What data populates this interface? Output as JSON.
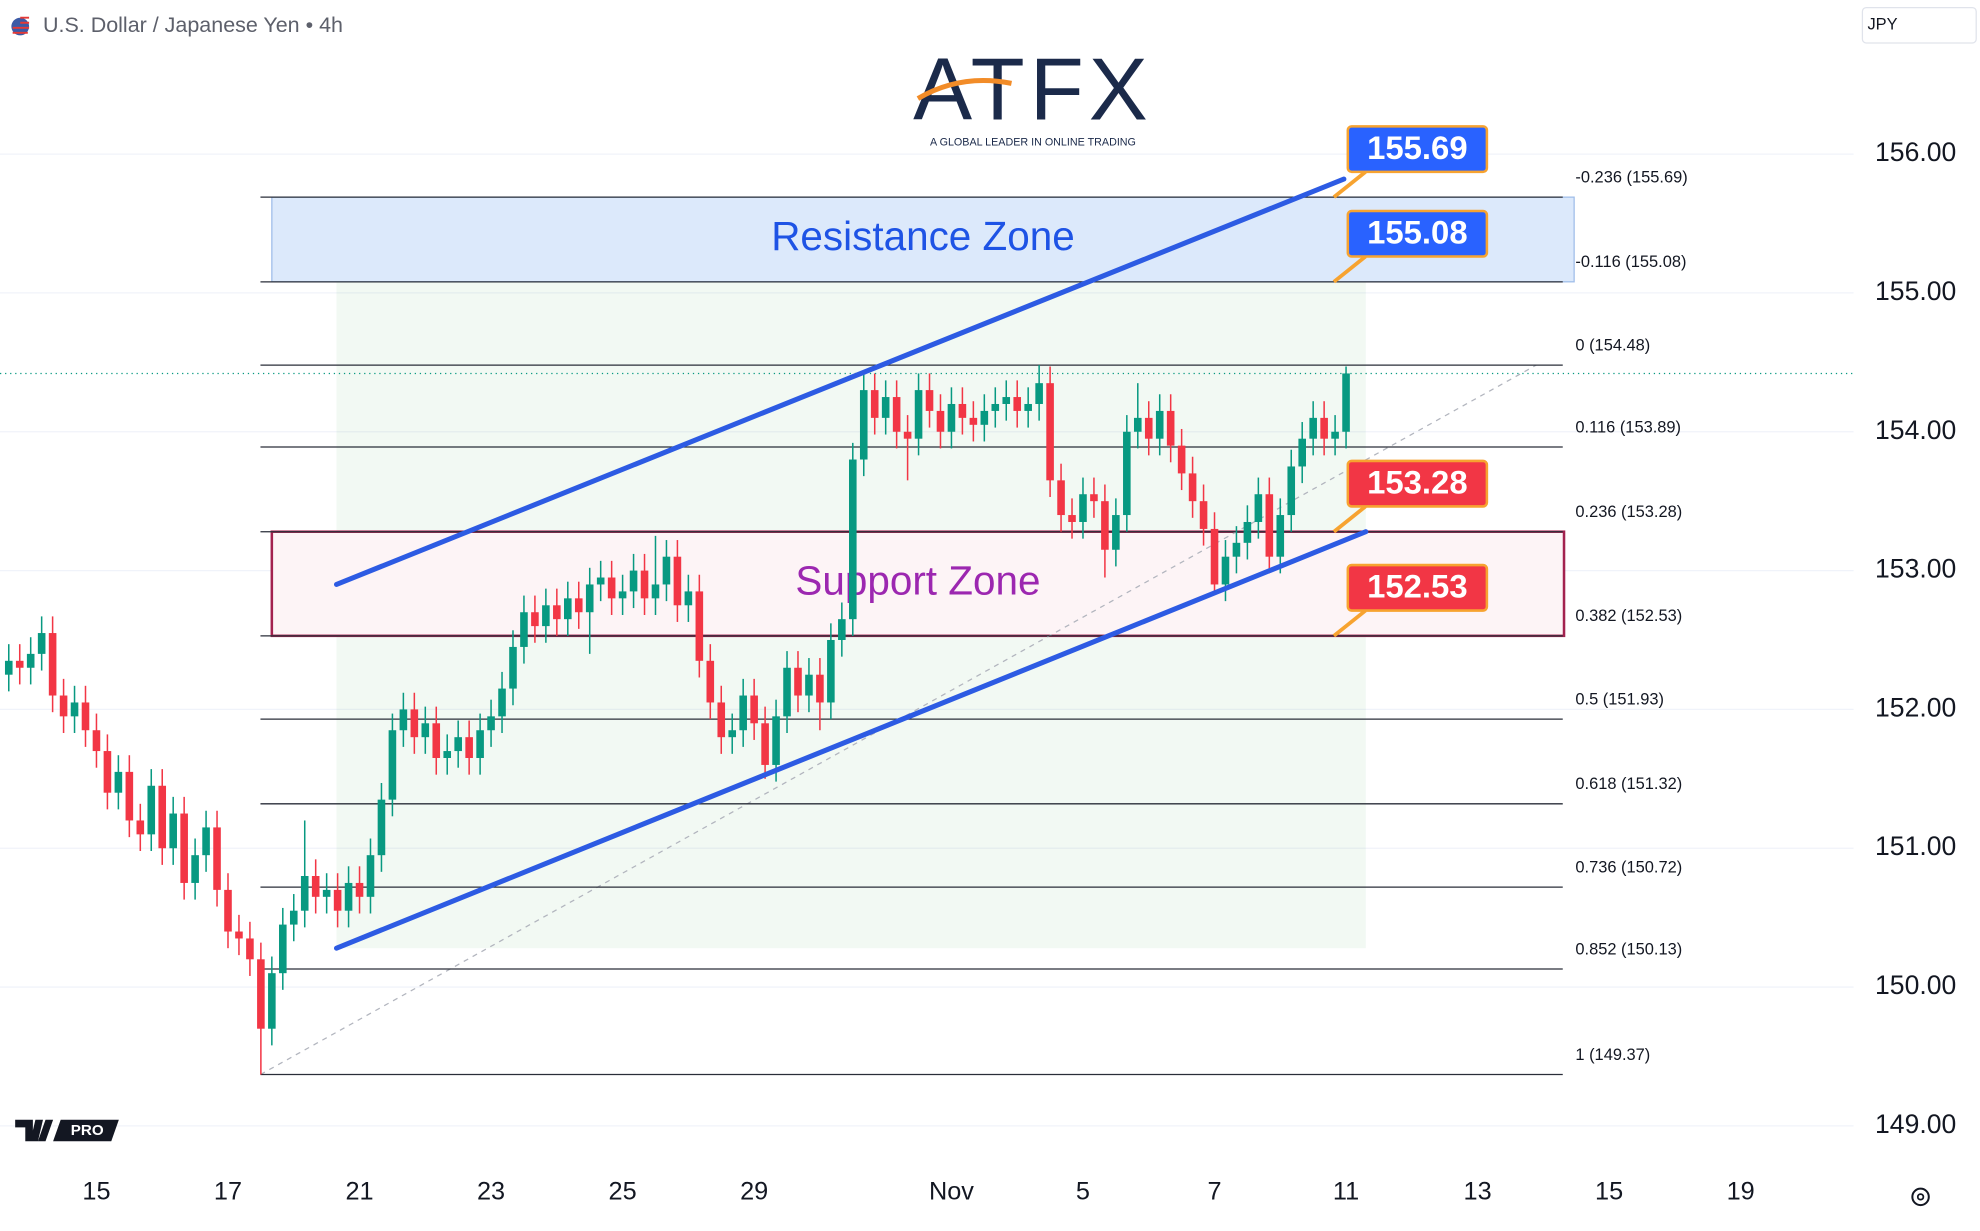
{
  "header": {
    "symbol": "U.S. Dollar / Japanese Yen • 4h",
    "currency": "JPY"
  },
  "logo": {
    "brand": "ATFX",
    "tagline": "A GLOBAL LEADER IN ONLINE TRADING",
    "platform_badge": "PRO"
  },
  "chart_data": {
    "type": "candlestick",
    "xlim": [
      -8.8,
      160.3
    ],
    "xticks": [
      {
        "value": 0,
        "label": "15"
      },
      {
        "value": 12,
        "label": "17"
      },
      {
        "value": 24,
        "label": "21"
      },
      {
        "value": 36,
        "label": "23"
      },
      {
        "value": 48,
        "label": "25"
      },
      {
        "value": 60,
        "label": "29"
      },
      {
        "value": 78,
        "label": "Nov"
      },
      {
        "value": 90,
        "label": "5"
      },
      {
        "value": 102,
        "label": "7"
      },
      {
        "value": 114,
        "label": "11"
      },
      {
        "value": 126,
        "label": "13"
      },
      {
        "value": 138,
        "label": "15"
      },
      {
        "value": 150,
        "label": "19"
      }
    ],
    "ylim": [
      148.78,
      157.11
    ],
    "yticks": [
      {
        "value": 149,
        "label": "149.00"
      },
      {
        "value": 150,
        "label": "150.00"
      },
      {
        "value": 151,
        "label": "151.00"
      },
      {
        "value": 152,
        "label": "152.00"
      },
      {
        "value": 153,
        "label": "153.00"
      },
      {
        "value": 154,
        "label": "154.00"
      },
      {
        "value": 155,
        "label": "155.00"
      },
      {
        "value": 156,
        "label": "156.00"
      }
    ],
    "grid": true,
    "up_color": "#089981",
    "down_color": "#f23645",
    "x": [
      -8,
      -7,
      -6,
      -5,
      -4,
      -3,
      -2,
      -1,
      0,
      1,
      2,
      3,
      4,
      5,
      6,
      7,
      8,
      9,
      10,
      11,
      12,
      13,
      14,
      15,
      16,
      17,
      18,
      19,
      20,
      21,
      22,
      23,
      24,
      25,
      26,
      27,
      28,
      29,
      30,
      31,
      32,
      33,
      34,
      35,
      36,
      37,
      38,
      39,
      40,
      41,
      42,
      43,
      44,
      45,
      46,
      47,
      48,
      49,
      50,
      51,
      52,
      53,
      54,
      55,
      56,
      57,
      58,
      59,
      60,
      61,
      62,
      63,
      64,
      65,
      66,
      67,
      68,
      69,
      70,
      71,
      72,
      73,
      74,
      75,
      76,
      77,
      78,
      79,
      80,
      81,
      82,
      83,
      84,
      85,
      86,
      87,
      88,
      89,
      90,
      91,
      92,
      93,
      94,
      95,
      96,
      97,
      98,
      99,
      100,
      101,
      102,
      103,
      104,
      105,
      106,
      107,
      108,
      109,
      110,
      111,
      112,
      113,
      114
    ],
    "open": [
      152.25,
      152.35,
      152.3,
      152.4,
      152.55,
      152.1,
      151.95,
      152.05,
      151.85,
      151.7,
      151.4,
      151.55,
      151.2,
      151.1,
      151.45,
      151.0,
      151.25,
      150.75,
      150.95,
      151.15,
      150.7,
      150.4,
      150.35,
      150.2,
      149.7,
      150.1,
      150.45,
      150.55,
      150.8,
      150.65,
      150.7,
      150.55,
      150.75,
      150.65,
      150.95,
      151.35,
      151.85,
      152.0,
      151.8,
      151.9,
      151.65,
      151.7,
      151.8,
      151.65,
      151.85,
      151.95,
      152.15,
      152.45,
      152.7,
      152.6,
      152.75,
      152.65,
      152.8,
      152.7,
      152.9,
      152.95,
      152.8,
      152.85,
      153.0,
      152.8,
      152.9,
      153.1,
      152.75,
      152.85,
      152.35,
      152.05,
      151.8,
      151.85,
      152.1,
      151.9,
      151.6,
      151.95,
      152.3,
      152.1,
      152.25,
      152.05,
      152.5,
      152.65,
      153.8,
      154.3,
      154.1,
      154.25,
      154.0,
      153.95,
      154.3,
      154.15,
      154.0,
      154.2,
      154.1,
      154.05,
      154.15,
      154.2,
      154.25,
      154.15,
      154.2,
      154.35,
      153.65,
      153.4,
      153.35,
      153.55,
      153.5,
      153.15,
      153.4,
      154.0,
      154.1,
      153.95,
      154.15,
      153.9,
      153.7,
      153.5,
      153.3,
      152.9,
      153.1,
      153.2,
      153.35,
      153.55,
      153.1,
      153.4,
      153.75,
      153.95,
      154.1,
      153.95,
      154.0
    ],
    "high": [
      152.47,
      152.47,
      152.52,
      152.67,
      152.67,
      152.22,
      152.17,
      152.17,
      151.97,
      151.82,
      151.67,
      151.67,
      151.32,
      151.57,
      151.57,
      151.37,
      151.37,
      151.07,
      151.27,
      151.27,
      150.82,
      150.52,
      150.47,
      150.32,
      150.22,
      150.57,
      150.67,
      151.2,
      150.92,
      150.82,
      150.82,
      150.87,
      150.87,
      151.07,
      151.47,
      151.97,
      152.12,
      152.12,
      152.02,
      152.02,
      151.82,
      151.92,
      151.92,
      151.97,
      152.07,
      152.27,
      152.57,
      152.82,
      152.82,
      152.87,
      152.87,
      152.92,
      152.92,
      153.02,
      153.07,
      153.07,
      152.97,
      153.12,
      153.12,
      153.25,
      153.22,
      153.22,
      152.97,
      152.97,
      152.47,
      152.17,
      151.97,
      152.22,
      152.22,
      152.02,
      152.07,
      152.42,
      152.42,
      152.37,
      152.37,
      152.62,
      152.77,
      153.92,
      154.42,
      154.42,
      154.37,
      154.37,
      154.12,
      154.42,
      154.42,
      154.27,
      154.32,
      154.32,
      154.22,
      154.27,
      154.32,
      154.37,
      154.37,
      154.32,
      154.48,
      154.47,
      153.77,
      153.52,
      153.67,
      153.67,
      153.62,
      153.52,
      154.12,
      154.35,
      154.22,
      154.27,
      154.27,
      154.02,
      153.82,
      153.62,
      153.42,
      153.22,
      153.32,
      153.47,
      153.67,
      153.67,
      153.52,
      153.87,
      154.07,
      154.22,
      154.22,
      154.12,
      154.47
    ],
    "low": [
      152.13,
      152.18,
      152.18,
      152.28,
      151.98,
      151.83,
      151.83,
      151.73,
      151.58,
      151.28,
      151.28,
      151.08,
      150.98,
      150.98,
      150.88,
      150.88,
      150.63,
      150.63,
      150.83,
      150.58,
      150.28,
      150.23,
      150.08,
      149.37,
      149.58,
      149.98,
      150.33,
      150.43,
      150.53,
      150.53,
      150.43,
      150.43,
      150.53,
      150.53,
      150.83,
      151.23,
      151.73,
      151.68,
      151.68,
      151.53,
      151.53,
      151.58,
      151.53,
      151.53,
      151.73,
      151.83,
      152.03,
      152.33,
      152.48,
      152.48,
      152.53,
      152.53,
      152.58,
      152.4,
      152.78,
      152.68,
      152.68,
      152.73,
      152.68,
      152.68,
      152.78,
      152.63,
      152.63,
      152.23,
      151.93,
      151.68,
      151.68,
      151.73,
      151.78,
      151.5,
      151.48,
      151.83,
      151.98,
      151.98,
      151.85,
      151.93,
      152.38,
      152.53,
      153.68,
      153.98,
      153.98,
      153.88,
      153.65,
      153.83,
      154.03,
      153.88,
      153.88,
      153.98,
      153.93,
      153.93,
      154.03,
      154.08,
      154.03,
      154.03,
      154.08,
      153.53,
      153.28,
      153.23,
      153.23,
      153.38,
      152.95,
      153.03,
      153.28,
      153.88,
      153.83,
      153.83,
      153.78,
      153.58,
      153.38,
      153.18,
      152.85,
      152.78,
      152.98,
      153.08,
      153.23,
      152.98,
      152.98,
      153.28,
      153.63,
      153.83,
      153.83,
      153.83,
      153.88
    ],
    "close": [
      152.35,
      152.3,
      152.4,
      152.55,
      152.1,
      151.95,
      152.05,
      151.85,
      151.7,
      151.4,
      151.55,
      151.2,
      151.1,
      151.45,
      151.0,
      151.25,
      150.75,
      150.95,
      151.15,
      150.7,
      150.4,
      150.35,
      150.2,
      149.7,
      150.1,
      150.45,
      150.55,
      150.8,
      150.65,
      150.7,
      150.55,
      150.75,
      150.65,
      150.95,
      151.35,
      151.85,
      152.0,
      151.8,
      151.9,
      151.65,
      151.7,
      151.8,
      151.65,
      151.85,
      151.95,
      152.15,
      152.45,
      152.7,
      152.6,
      152.75,
      152.65,
      152.8,
      152.7,
      152.9,
      152.95,
      152.8,
      152.85,
      153.0,
      152.8,
      152.9,
      153.1,
      152.75,
      152.85,
      152.35,
      152.05,
      151.8,
      151.85,
      152.1,
      151.9,
      151.6,
      151.95,
      152.3,
      152.1,
      152.25,
      152.05,
      152.5,
      152.65,
      153.8,
      154.3,
      154.1,
      154.25,
      154.0,
      153.95,
      154.3,
      154.15,
      154.0,
      154.2,
      154.1,
      154.05,
      154.15,
      154.2,
      154.25,
      154.15,
      154.2,
      154.35,
      153.65,
      153.4,
      153.35,
      153.55,
      153.5,
      153.15,
      153.4,
      154.0,
      154.1,
      153.95,
      154.15,
      153.9,
      153.7,
      153.5,
      153.3,
      152.9,
      153.1,
      153.2,
      153.35,
      153.55,
      153.1,
      153.4,
      153.75,
      153.95,
      154.1,
      153.95,
      154.0,
      154.42
    ],
    "fib_levels": [
      {
        "value": 155.69,
        "label": "-0.236 (155.69)"
      },
      {
        "value": 155.08,
        "label": "-0.116 (155.08)"
      },
      {
        "value": 154.48,
        "label": "0 (154.48)"
      },
      {
        "value": 153.89,
        "label": "0.116 (153.89)"
      },
      {
        "value": 153.28,
        "label": "0.236 (153.28)"
      },
      {
        "value": 152.53,
        "label": "0.382 (152.53)"
      },
      {
        "value": 151.93,
        "label": "0.5 (151.93)"
      },
      {
        "value": 151.32,
        "label": "0.618 (151.32)"
      },
      {
        "value": 150.72,
        "label": "0.736 (150.72)"
      },
      {
        "value": 150.13,
        "label": "0.852 (150.13)"
      },
      {
        "value": 149.37,
        "label": "1 (149.37)"
      }
    ],
    "zones": [
      {
        "label": "Resistance Zone",
        "range": [
          155.08,
          155.69
        ],
        "color": "#1e53e5",
        "fill": "#dce9fb",
        "border": "#9fbde9"
      },
      {
        "label": "Support Zone",
        "range": [
          152.53,
          153.28
        ],
        "color": "#9c27b0",
        "fill": "#fdf4f6",
        "border": "#a3224f"
      }
    ],
    "channel_color": "#2d5be3",
    "channel": [
      {
        "x": [
          21.9,
          113.8
        ],
        "y": [
          152.9,
          155.82
        ]
      },
      {
        "x": [
          21.9,
          115.8
        ],
        "y": [
          150.28,
          153.28
        ]
      }
    ],
    "callouts": [
      {
        "value": 155.69,
        "color": "#2962ff"
      },
      {
        "value": 155.08,
        "color": "#2962ff"
      },
      {
        "value": 153.28,
        "color": "#f23645"
      },
      {
        "value": 152.53,
        "color": "#f23645"
      }
    ]
  }
}
